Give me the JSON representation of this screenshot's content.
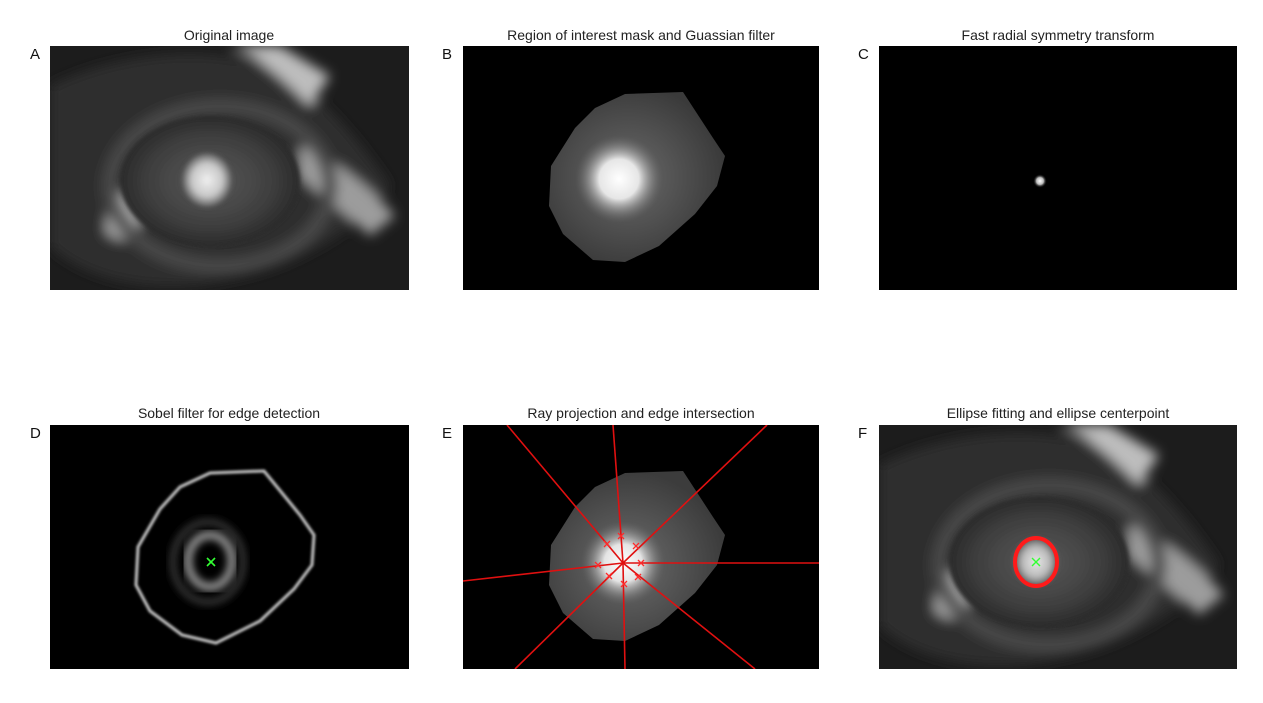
{
  "panels": [
    {
      "letter": "A",
      "title": "Original image"
    },
    {
      "letter": "B",
      "title": "Region of interest mask and Guassian filter"
    },
    {
      "letter": "C",
      "title": "Fast radial symmetry transform"
    },
    {
      "letter": "D",
      "title": "Sobel filter for edge detection"
    },
    {
      "letter": "E",
      "title": "Ray projection and edge intersection"
    },
    {
      "letter": "F",
      "title": "Ellipse fitting and ellipse centerpoint"
    }
  ],
  "colors": {
    "background": "#ffffff",
    "image_background": "#000000",
    "ray_color": "#e01010",
    "ellipse_color": "#ff1a1a",
    "center_marker": "#33ff33"
  }
}
